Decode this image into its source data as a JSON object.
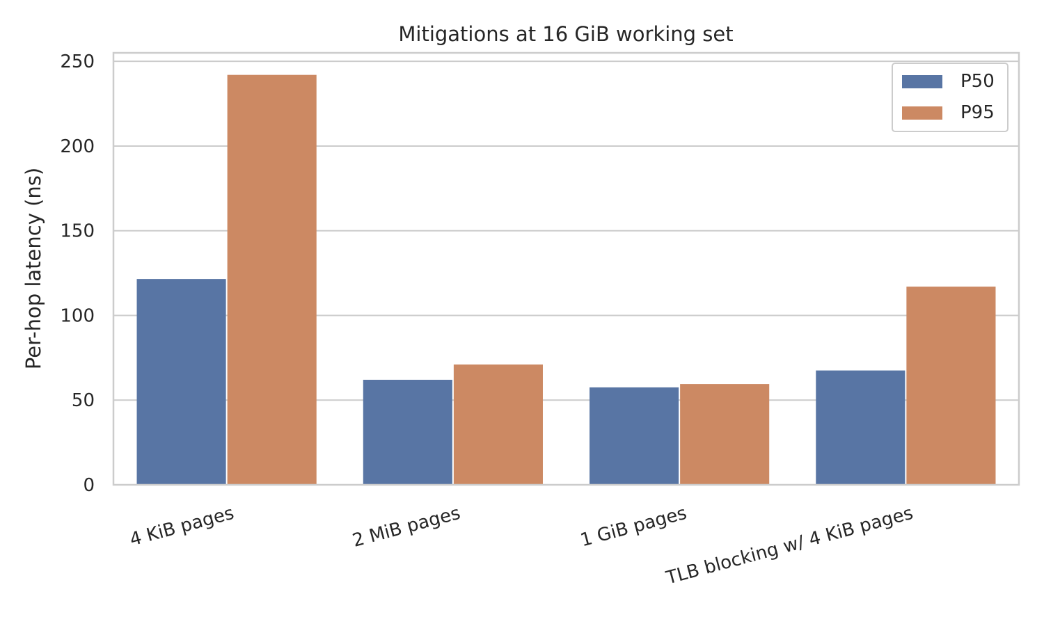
{
  "chart_data": {
    "type": "bar",
    "title": "Mitigations at 16 GiB working set",
    "xlabel": "",
    "ylabel": "Per-hop latency (ns)",
    "categories": [
      "4 KiB pages",
      "2 MiB pages",
      "1 GiB pages",
      "TLB blocking w/ 4 KiB pages"
    ],
    "series": [
      {
        "name": "P50",
        "color": "#5875a4",
        "values": [
          121.5,
          62,
          57.5,
          67.5
        ]
      },
      {
        "name": "P95",
        "color": "#cc8963",
        "values": [
          242,
          71,
          59.5,
          117
        ]
      }
    ],
    "ylim": [
      0,
      255
    ],
    "yticks": [
      0,
      50,
      100,
      150,
      200,
      250
    ],
    "grid": true,
    "legend_position": "top-right"
  }
}
